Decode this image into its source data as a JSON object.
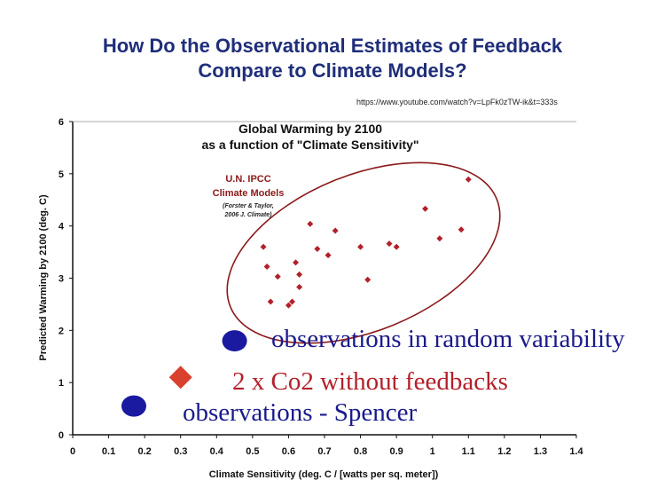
{
  "slide": {
    "title_line1": "How Do the Observational Estimates of Feedback",
    "title_line2": "Compare to Climate Models?",
    "source_url": "https://www.youtube.com/watch?v=LpFk0zTW-ik&t=333s"
  },
  "chart_data": {
    "type": "scatter",
    "title_line1": "Global Warming by 2100",
    "title_line2": "as a function of \"Climate Sensitivity\"",
    "xlabel": "Climate Sensitivity (deg. C / [watts per sq. meter])",
    "ylabel": "Predicted Warming by 2100 (deg. C)",
    "xlim": [
      0,
      1.4
    ],
    "ylim": [
      0,
      6
    ],
    "xticks": [
      "0",
      "0.1",
      "0.2",
      "0.3",
      "0.4",
      "0.5",
      "0.6",
      "0.7",
      "0.8",
      "0.9",
      "1",
      "1.1",
      "1.2",
      "1.3",
      "1.4"
    ],
    "yticks": [
      "0",
      "1",
      "2",
      "3",
      "4",
      "5",
      "6"
    ],
    "grid": false,
    "series": [
      {
        "label_line1": "U.N. IPCC",
        "label_line2": "Climate Models",
        "citation_line1": "(Forster & Taylor,",
        "citation_line2": "2006 J. Climate)",
        "color": "#b3202a",
        "marker": "diamond",
        "points": [
          [
            0.53,
            3.6
          ],
          [
            0.54,
            3.22
          ],
          [
            0.55,
            2.55
          ],
          [
            0.57,
            3.03
          ],
          [
            0.6,
            2.48
          ],
          [
            0.61,
            2.55
          ],
          [
            0.62,
            3.3
          ],
          [
            0.63,
            3.07
          ],
          [
            0.63,
            2.83
          ],
          [
            0.66,
            4.04
          ],
          [
            0.68,
            3.56
          ],
          [
            0.71,
            3.44
          ],
          [
            0.73,
            3.91
          ],
          [
            0.8,
            3.6
          ],
          [
            0.82,
            2.97
          ],
          [
            0.88,
            3.66
          ],
          [
            0.9,
            3.6
          ],
          [
            0.98,
            4.33
          ],
          [
            1.02,
            3.76
          ],
          [
            1.08,
            3.93
          ],
          [
            1.1,
            4.89
          ]
        ]
      },
      {
        "label": "observations in random variability",
        "color": "#1a1aa0",
        "marker": "circle",
        "points": [
          [
            0.45,
            1.8
          ]
        ]
      },
      {
        "label": "2 x Co2 without feedbacks",
        "color": "#d9402e",
        "marker": "diamond",
        "points": [
          [
            0.3,
            1.1
          ]
        ]
      },
      {
        "label": "observations - Spencer",
        "color": "#1a1aa0",
        "marker": "circle",
        "points": [
          [
            0.17,
            0.55
          ]
        ]
      }
    ],
    "ellipse_color": "#8b1a1a"
  }
}
